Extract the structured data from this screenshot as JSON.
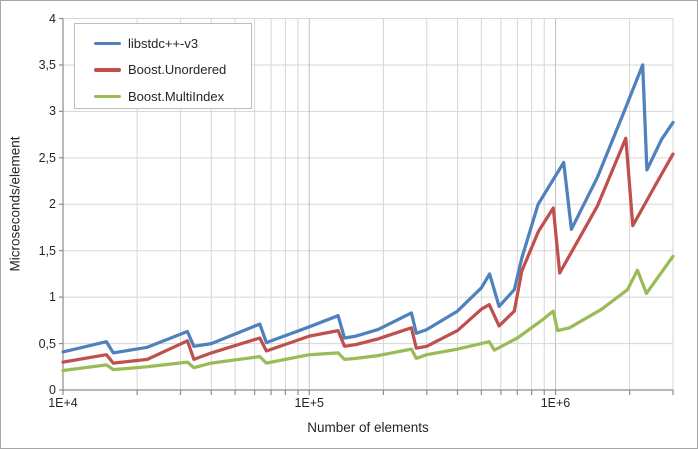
{
  "window": {
    "background": "#ffffff",
    "frame_border": "#a6a6a6"
  },
  "chart_data": {
    "type": "line",
    "title": "",
    "xlabel": "Number of elements",
    "ylabel": "Microseconds/element",
    "x_scale": "log",
    "x_range": [
      10000,
      3000000
    ],
    "y_range": [
      0,
      4
    ],
    "grid": true,
    "legend_position": "top-left",
    "colors": {
      "grid_minor": "#d6d6d6",
      "grid_major": "#c2c2c2",
      "axis": "#8c8c8c",
      "text": "#262626",
      "legend_border": "#bdbdbd"
    },
    "y_ticks": [
      {
        "v": 0,
        "label": "0"
      },
      {
        "v": 0.5,
        "label": "0,5"
      },
      {
        "v": 1,
        "label": "1"
      },
      {
        "v": 1.5,
        "label": "1,5"
      },
      {
        "v": 2,
        "label": "2"
      },
      {
        "v": 2.5,
        "label": "2,5"
      },
      {
        "v": 3,
        "label": "3"
      },
      {
        "v": 3.5,
        "label": "3,5"
      },
      {
        "v": 4,
        "label": "4"
      }
    ],
    "x_major_ticks": [
      {
        "v": 10000,
        "label": "1E+4"
      },
      {
        "v": 100000,
        "label": "1E+5"
      },
      {
        "v": 1000000,
        "label": "1E+6"
      }
    ],
    "x_minor_ticks": [
      10000,
      20000,
      30000,
      40000,
      50000,
      60000,
      70000,
      80000,
      90000,
      100000,
      200000,
      300000,
      400000,
      500000,
      600000,
      700000,
      800000,
      900000,
      1000000,
      2000000,
      3000000
    ],
    "series": [
      {
        "name": "libstdc++-v3",
        "color": "#4f81bd",
        "points": [
          [
            10000,
            0.41
          ],
          [
            15000,
            0.52
          ],
          [
            16000,
            0.4
          ],
          [
            22000,
            0.46
          ],
          [
            32000,
            0.63
          ],
          [
            34000,
            0.47
          ],
          [
            40000,
            0.5
          ],
          [
            63000,
            0.71
          ],
          [
            67000,
            0.51
          ],
          [
            100000,
            0.68
          ],
          [
            131000,
            0.8
          ],
          [
            139000,
            0.56
          ],
          [
            155000,
            0.58
          ],
          [
            190000,
            0.65
          ],
          [
            260000,
            0.83
          ],
          [
            272000,
            0.61
          ],
          [
            300000,
            0.65
          ],
          [
            400000,
            0.85
          ],
          [
            500000,
            1.1
          ],
          [
            540000,
            1.25
          ],
          [
            590000,
            0.9
          ],
          [
            680000,
            1.08
          ],
          [
            730000,
            1.42
          ],
          [
            850000,
            2.0
          ],
          [
            1080000,
            2.45
          ],
          [
            1160000,
            1.73
          ],
          [
            1480000,
            2.29
          ],
          [
            1900000,
            3.0
          ],
          [
            2260000,
            3.5
          ],
          [
            2350000,
            2.37
          ],
          [
            2700000,
            2.7
          ],
          [
            3000000,
            2.88
          ]
        ]
      },
      {
        "name": "Boost.Unordered",
        "color": "#c0504d",
        "points": [
          [
            10000,
            0.3
          ],
          [
            15000,
            0.38
          ],
          [
            16000,
            0.29
          ],
          [
            22000,
            0.33
          ],
          [
            32000,
            0.53
          ],
          [
            34000,
            0.33
          ],
          [
            40000,
            0.4
          ],
          [
            63000,
            0.56
          ],
          [
            67000,
            0.42
          ],
          [
            100000,
            0.58
          ],
          [
            131000,
            0.64
          ],
          [
            139000,
            0.47
          ],
          [
            155000,
            0.49
          ],
          [
            190000,
            0.55
          ],
          [
            260000,
            0.67
          ],
          [
            272000,
            0.45
          ],
          [
            300000,
            0.47
          ],
          [
            400000,
            0.64
          ],
          [
            500000,
            0.87
          ],
          [
            538000,
            0.92
          ],
          [
            590000,
            0.69
          ],
          [
            680000,
            0.85
          ],
          [
            730000,
            1.28
          ],
          [
            853000,
            1.71
          ],
          [
            980000,
            1.96
          ],
          [
            1040000,
            1.26
          ],
          [
            1480000,
            1.98
          ],
          [
            1930000,
            2.71
          ],
          [
            2060000,
            1.77
          ],
          [
            2500000,
            2.17
          ],
          [
            3000000,
            2.54
          ]
        ]
      },
      {
        "name": "Boost.MultiIndex",
        "color": "#9bbb59",
        "points": [
          [
            10000,
            0.21
          ],
          [
            15000,
            0.27
          ],
          [
            16000,
            0.22
          ],
          [
            22000,
            0.25
          ],
          [
            32000,
            0.3
          ],
          [
            34000,
            0.24
          ],
          [
            40000,
            0.29
          ],
          [
            63000,
            0.36
          ],
          [
            67000,
            0.29
          ],
          [
            100000,
            0.38
          ],
          [
            131000,
            0.4
          ],
          [
            139000,
            0.33
          ],
          [
            155000,
            0.34
          ],
          [
            190000,
            0.37
          ],
          [
            260000,
            0.44
          ],
          [
            272000,
            0.34
          ],
          [
            300000,
            0.38
          ],
          [
            400000,
            0.44
          ],
          [
            500000,
            0.5
          ],
          [
            538000,
            0.52
          ],
          [
            565000,
            0.43
          ],
          [
            700000,
            0.56
          ],
          [
            890000,
            0.76
          ],
          [
            980000,
            0.85
          ],
          [
            1020000,
            0.64
          ],
          [
            1140000,
            0.67
          ],
          [
            1540000,
            0.87
          ],
          [
            1960000,
            1.08
          ],
          [
            2150000,
            1.29
          ],
          [
            2340000,
            1.04
          ],
          [
            3000000,
            1.44
          ]
        ]
      }
    ]
  }
}
